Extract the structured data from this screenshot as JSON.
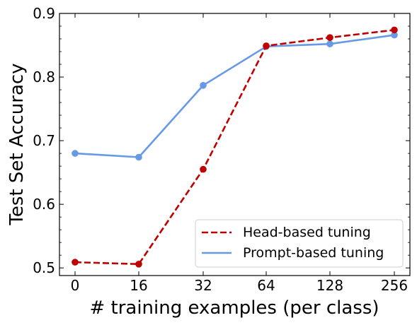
{
  "chart_data": {
    "type": "line",
    "title": "",
    "xlabel": "# training examples (per class)",
    "ylabel": "Test Set Accuracy",
    "categories": [
      "0",
      "16",
      "32",
      "64",
      "128",
      "256"
    ],
    "yticks": [
      "0.5",
      "0.6",
      "0.7",
      "0.8",
      "0.9"
    ],
    "ylim": [
      0.488,
      0.9
    ],
    "grid": false,
    "legend_position": "bottom-right",
    "series": [
      {
        "name": "Head-based tuning",
        "style": "dashed",
        "color": "#c00000",
        "values": [
          0.509,
          0.506,
          0.655,
          0.849,
          0.862,
          0.874
        ]
      },
      {
        "name": "Prompt-based tuning",
        "style": "solid",
        "color": "#6699e6",
        "values": [
          0.68,
          0.674,
          0.787,
          0.848,
          0.852,
          0.866
        ]
      }
    ]
  }
}
